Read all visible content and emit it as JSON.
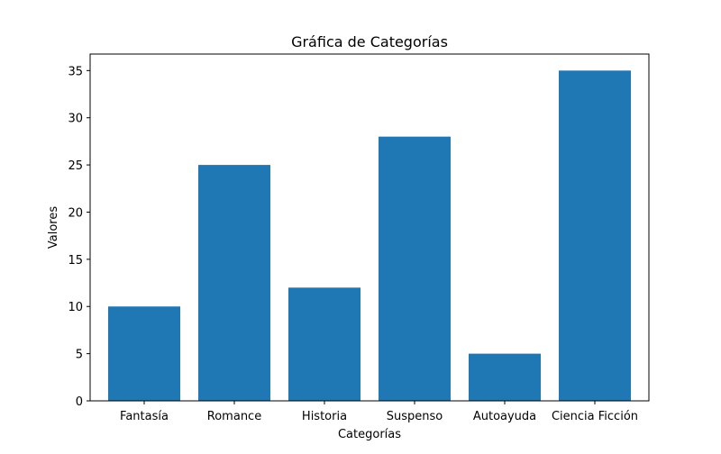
{
  "chart_data": {
    "type": "bar",
    "title": "Gráfica de Categorías",
    "xlabel": "Categorías",
    "ylabel": "Valores",
    "categories": [
      "Fantasía",
      "Romance",
      "Historia",
      "Suspenso",
      "Autoayuda",
      "Ciencia Ficción"
    ],
    "values": [
      10,
      25,
      12,
      28,
      5,
      35
    ],
    "ylim": [
      0,
      36.75
    ],
    "yticks": [
      0,
      5,
      10,
      15,
      20,
      25,
      30,
      35
    ],
    "grid": false,
    "legend": "none",
    "bar_color": "#1f77b4"
  }
}
